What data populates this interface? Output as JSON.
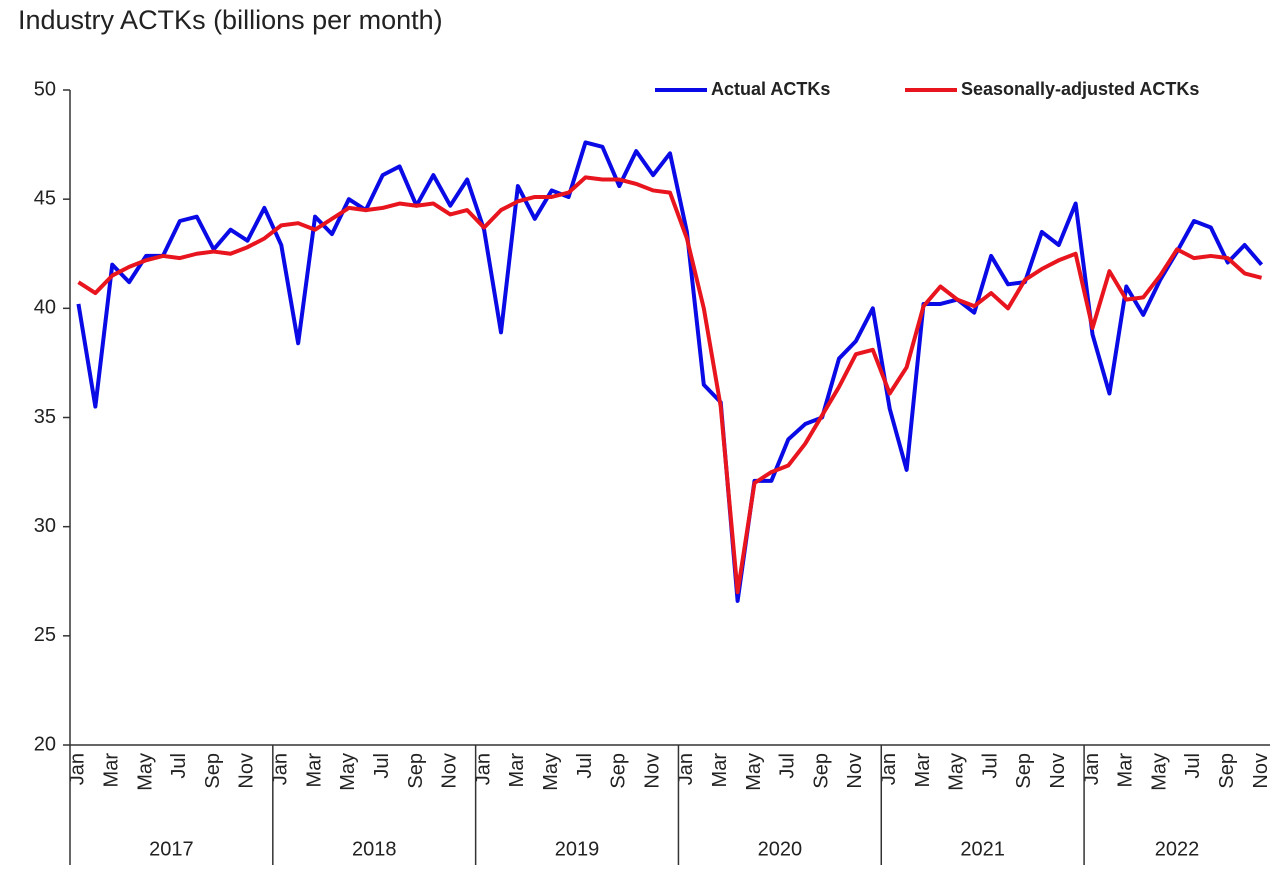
{
  "chart_data": {
    "type": "line",
    "title": "Industry ACTKs (billions per month)",
    "categories": [
      "Jan",
      null,
      "Mar",
      null,
      "May",
      null,
      "Jul",
      null,
      "Sep",
      null,
      "Nov",
      null,
      "Jan",
      null,
      "Mar",
      null,
      "May",
      null,
      "Jul",
      null,
      "Sep",
      null,
      "Nov",
      null,
      "Jan",
      null,
      "Mar",
      null,
      "May",
      null,
      "Jul",
      null,
      "Sep",
      null,
      "Nov",
      null,
      "Jan",
      null,
      "Mar",
      null,
      "May",
      null,
      "Jul",
      null,
      "Sep",
      null,
      "Nov",
      null,
      "Jan",
      null,
      "Mar",
      null,
      "May",
      null,
      "Jul",
      null,
      "Sep",
      null,
      "Nov",
      null,
      "Jan",
      null,
      "Mar",
      null,
      "May",
      null,
      "Jul",
      null,
      "Sep",
      null,
      "Nov"
    ],
    "year_groups": [
      "2017",
      "2018",
      "2019",
      "2020",
      "2021",
      "2022"
    ],
    "series": [
      {
        "name": "Actual ACTKs",
        "color": "#0a0ae6",
        "values": [
          40.2,
          35.5,
          42.0,
          41.2,
          42.4,
          42.4,
          44.0,
          44.2,
          42.7,
          43.6,
          43.1,
          44.6,
          42.9,
          38.4,
          44.2,
          43.4,
          45.0,
          44.5,
          46.1,
          46.5,
          44.7,
          46.1,
          44.7,
          45.9,
          43.6,
          38.9,
          45.6,
          44.1,
          45.4,
          45.1,
          47.6,
          47.4,
          45.6,
          47.2,
          46.1,
          47.1,
          43.5,
          36.5,
          35.7,
          26.6,
          32.1,
          32.1,
          34.0,
          34.7,
          35.0,
          37.7,
          38.5,
          40.0,
          35.4,
          32.6,
          40.2,
          40.2,
          40.4,
          39.8,
          42.4,
          41.1,
          41.2,
          43.5,
          42.9,
          44.8,
          38.8,
          36.1,
          41.0,
          39.7,
          41.3,
          42.6,
          44.0,
          43.7,
          42.1,
          42.9,
          42.0
        ]
      },
      {
        "name": "Seasonally-adjusted ACTKs",
        "color": "#e8141e",
        "values": [
          41.2,
          40.7,
          41.5,
          41.9,
          42.2,
          42.4,
          42.3,
          42.5,
          42.6,
          42.5,
          42.8,
          43.2,
          43.8,
          43.9,
          43.6,
          44.1,
          44.6,
          44.5,
          44.6,
          44.8,
          44.7,
          44.8,
          44.3,
          44.5,
          43.7,
          44.5,
          44.9,
          45.1,
          45.1,
          45.3,
          46.0,
          45.9,
          45.9,
          45.7,
          45.4,
          45.3,
          43.2,
          40.0,
          35.5,
          27.0,
          32.0,
          32.5,
          32.8,
          33.8,
          35.1,
          36.4,
          37.9,
          38.1,
          36.1,
          37.3,
          40.1,
          41.0,
          40.4,
          40.1,
          40.7,
          40.0,
          41.3,
          41.8,
          42.2,
          42.5,
          39.1,
          41.7,
          40.4,
          40.5,
          41.5,
          42.7,
          42.3,
          42.4,
          42.3,
          41.6,
          41.4
        ]
      }
    ],
    "ylim": [
      20,
      50
    ],
    "yticks": [
      20,
      25,
      30,
      35,
      40,
      45,
      50
    ],
    "grid": false,
    "legend": "top-right"
  }
}
